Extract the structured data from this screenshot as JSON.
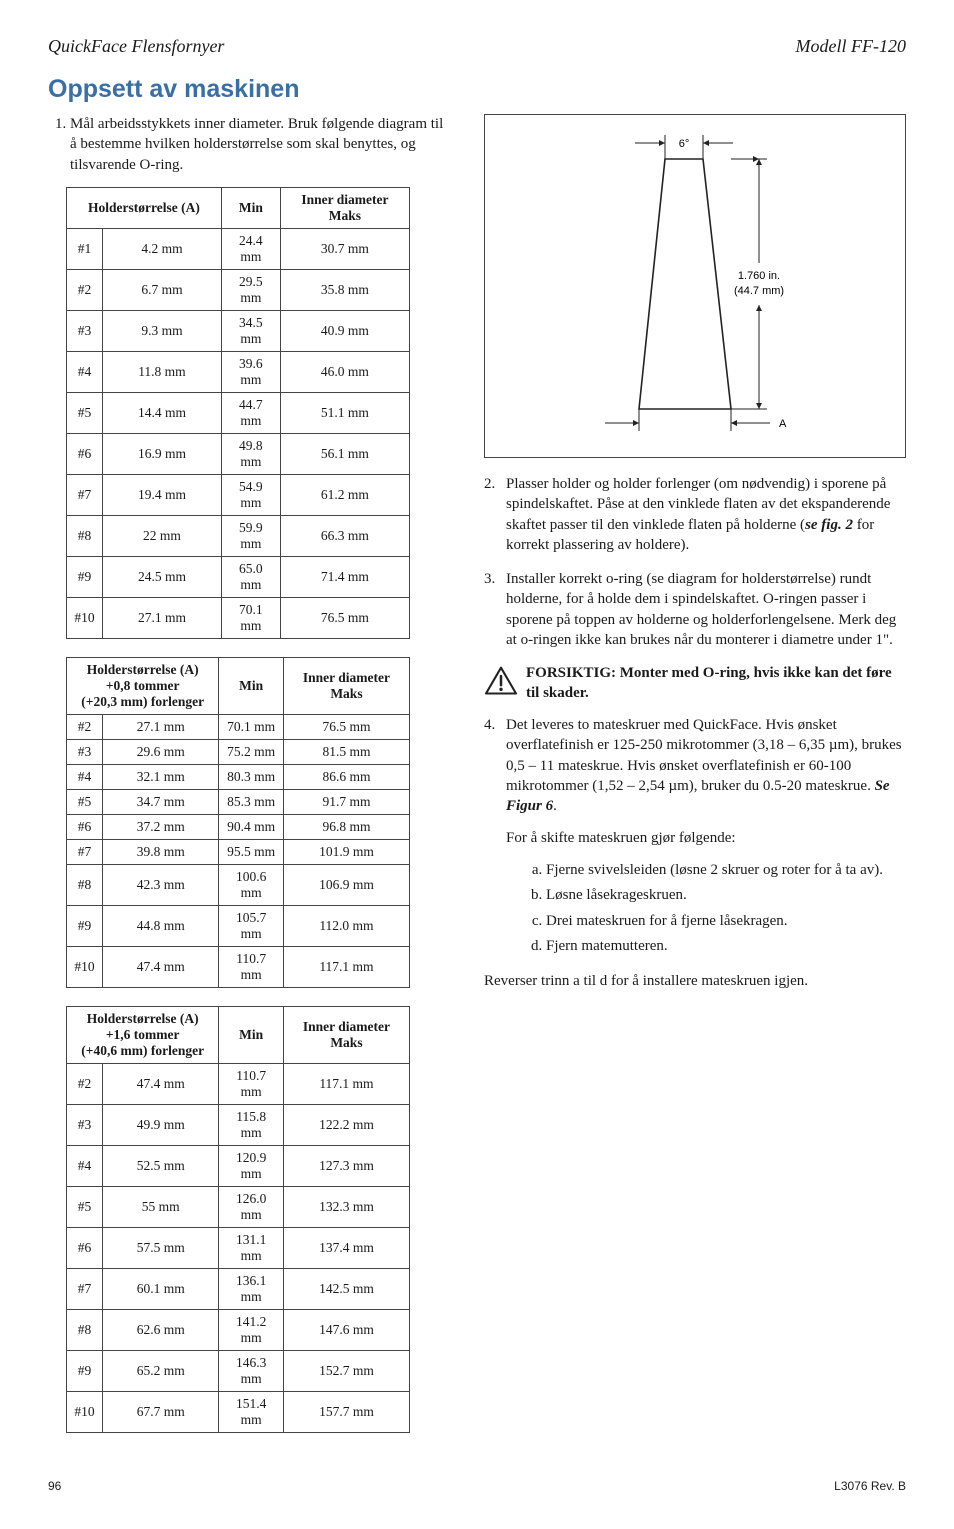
{
  "header": {
    "left": "QuickFace Flensfornyer",
    "right": "Modell FF-120"
  },
  "title": "Oppsett av maskinen",
  "intro_item": "Mål arbeidsstykkets inner diameter. Bruk følgende diagram til å bestemme hvilken holderstørrelse som skal benyttes, og tilsvarende O-ring.",
  "table_headers": {
    "holder": "Holderstørrelse (A)",
    "min": "Min",
    "maks": "Inner diameter Maks",
    "holder2a": "Holderstørrelse (A)",
    "holder2b": "+0,8 tommer",
    "holder2c": "(+20,3 mm) forlenger",
    "holder3a": "Holderstørrelse (A)",
    "holder3b": "+1,6 tommer",
    "holder3c": "(+40,6 mm) forlenger"
  },
  "table1": [
    [
      "#1",
      "4.2 mm",
      "24.4 mm",
      "30.7 mm"
    ],
    [
      "#2",
      "6.7 mm",
      "29.5 mm",
      "35.8 mm"
    ],
    [
      "#3",
      "9.3 mm",
      "34.5 mm",
      "40.9 mm"
    ],
    [
      "#4",
      "11.8 mm",
      "39.6 mm",
      "46.0 mm"
    ],
    [
      "#5",
      "14.4 mm",
      "44.7 mm",
      "51.1 mm"
    ],
    [
      "#6",
      "16.9 mm",
      "49.8 mm",
      "56.1 mm"
    ],
    [
      "#7",
      "19.4 mm",
      "54.9 mm",
      "61.2 mm"
    ],
    [
      "#8",
      "22 mm",
      "59.9 mm",
      "66.3 mm"
    ],
    [
      "#9",
      "24.5 mm",
      "65.0 mm",
      "71.4 mm"
    ],
    [
      "#10",
      "27.1 mm",
      "70.1 mm",
      "76.5 mm"
    ]
  ],
  "table2": [
    [
      "#2",
      "27.1 mm",
      "70.1 mm",
      "76.5 mm"
    ],
    [
      "#3",
      "29.6 mm",
      "75.2 mm",
      "81.5 mm"
    ],
    [
      "#4",
      "32.1 mm",
      "80.3 mm",
      "86.6 mm"
    ],
    [
      "#5",
      "34.7 mm",
      "85.3 mm",
      "91.7 mm"
    ],
    [
      "#6",
      "37.2 mm",
      "90.4 mm",
      "96.8 mm"
    ],
    [
      "#7",
      "39.8 mm",
      "95.5 mm",
      "101.9 mm"
    ],
    [
      "#8",
      "42.3 mm",
      "100.6 mm",
      "106.9 mm"
    ],
    [
      "#9",
      "44.8 mm",
      "105.7 mm",
      "112.0 mm"
    ],
    [
      "#10",
      "47.4 mm",
      "110.7 mm",
      "117.1 mm"
    ]
  ],
  "table3": [
    [
      "#2",
      "47.4 mm",
      "110.7 mm",
      "117.1 mm"
    ],
    [
      "#3",
      "49.9 mm",
      "115.8 mm",
      "122.2 mm"
    ],
    [
      "#4",
      "52.5 mm",
      "120.9 mm",
      "127.3 mm"
    ],
    [
      "#5",
      "55 mm",
      "126.0 mm",
      "132.3 mm"
    ],
    [
      "#6",
      "57.5 mm",
      "131.1 mm",
      "137.4 mm"
    ],
    [
      "#7",
      "60.1 mm",
      "136.1 mm",
      "142.5 mm"
    ],
    [
      "#8",
      "62.6 mm",
      "141.2 mm",
      "147.6 mm"
    ],
    [
      "#9",
      "65.2 mm",
      "146.3 mm",
      "152.7 mm"
    ],
    [
      "#10",
      "67.7 mm",
      "151.4 mm",
      "157.7 mm"
    ]
  ],
  "diagram": {
    "angle_label": "6°",
    "dim_in": "1.760 in.",
    "dim_mm": "(44.7 mm)",
    "a_label": "A",
    "stroke": "#222222",
    "fontsize": 11
  },
  "right": {
    "item2_a": "Plasser holder og holder forlenger (om nødvendig) i sporene på spindelskaftet. Påse at den vinklede flaten av det ekspanderende skaftet passer til den vinklede flaten på holderne (",
    "item2_b": "se fig. 2",
    "item2_c": " for korrekt plassering av holdere).",
    "item3": "Installer korrekt o-ring (se diagram for holderstørrelse) rundt holderne, for å holde dem i spindelskaftet. O-ringen passer i sporene på toppen av holderne og holderforlengelsene. Merk deg at o-ringen ikke kan brukes når du monterer i diametre under 1\".",
    "caution": "FORSIKTIG: Monter med O-ring, hvis ikke kan det føre til skader.",
    "item4_a": "Det leveres to mateskruer med QuickFace. Hvis ønsket overflatefinish er 125-250 mikrotommer (3,18 – 6,35 µm), brukes 0,5 – 11 mateskrue. Hvis ønsket overflatefinish er 60-100 mikrotommer (1,52 – 2,54 µm), bruker du 0.5-20 mateskrue. ",
    "item4_b": "Se Figur 6",
    "item4_c": ".",
    "change_intro": "For å skifte mateskruen gjør følgende:",
    "sub_a": "Fjerne svivelsleiden (løsne 2 skruer og roter for å ta av).",
    "sub_b": "Løsne låsekrageskruen.",
    "sub_c": "Drei mateskruen for å fjerne låsekragen.",
    "sub_d": "Fjern matemutteren.",
    "reverse": "Reverser trinn a til d for å installere mateskruen igjen."
  },
  "footer": {
    "page": "96",
    "rev": "L3076   Rev. B"
  }
}
